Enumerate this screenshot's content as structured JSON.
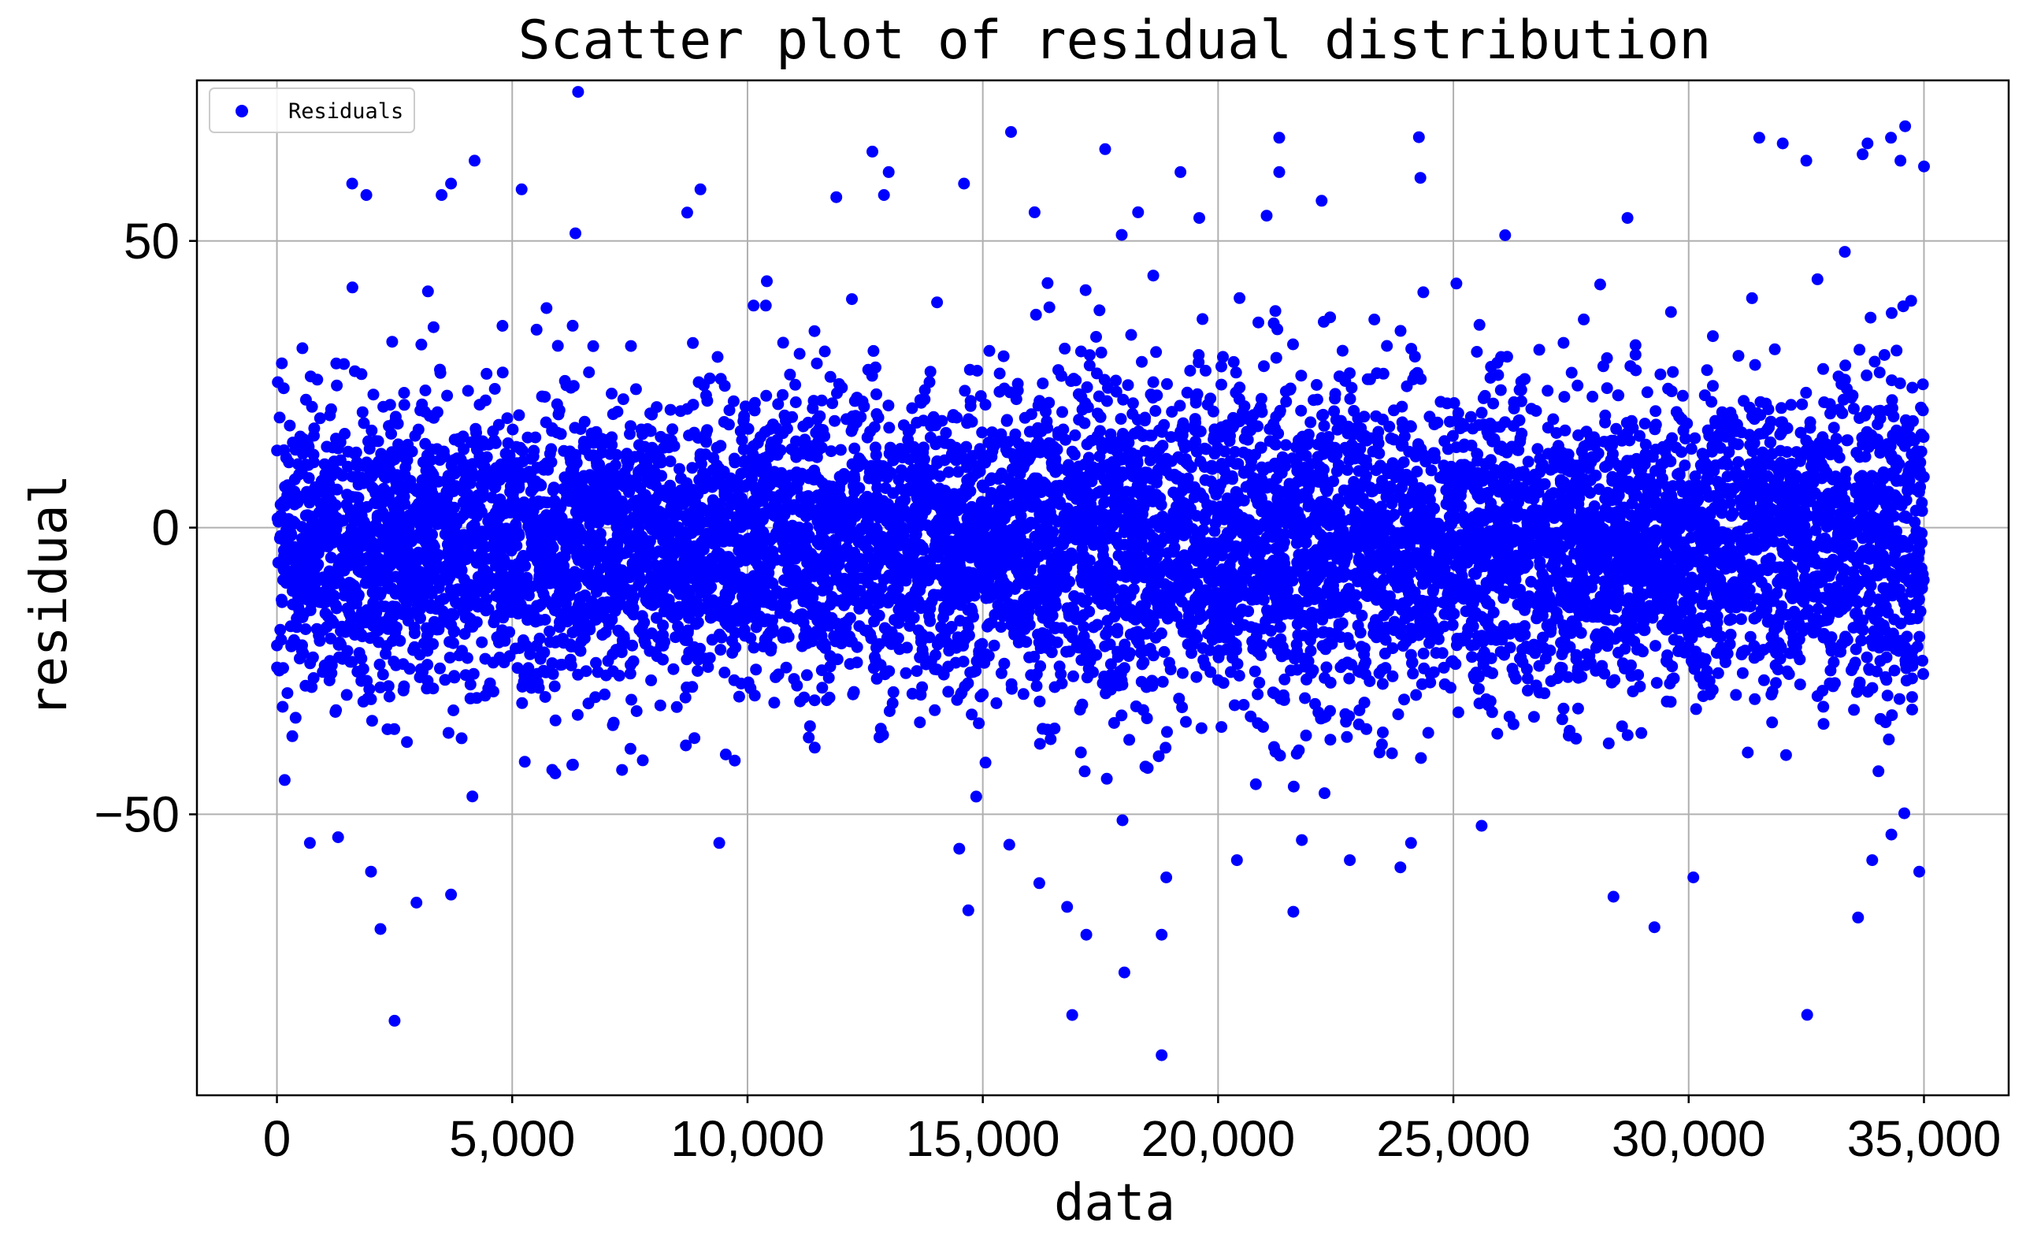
{
  "chart_data": {
    "type": "scatter",
    "title": "Scatter plot of residual distribution",
    "xlabel": "data",
    "ylabel": "residual",
    "xlim": [
      -1700,
      36800
    ],
    "ylim": [
      -99,
      78
    ],
    "x_ticks": [
      {
        "value": 0,
        "label": "0"
      },
      {
        "value": 5000,
        "label": "5,000"
      },
      {
        "value": 10000,
        "label": "10,000"
      },
      {
        "value": 15000,
        "label": "15,000"
      },
      {
        "value": 20000,
        "label": "20,000"
      },
      {
        "value": 25000,
        "label": "25,000"
      },
      {
        "value": 30000,
        "label": "30,000"
      },
      {
        "value": 35000,
        "label": "35,000"
      }
    ],
    "y_ticks": [
      {
        "value": 50,
        "label": "50"
      },
      {
        "value": 0,
        "label": "0"
      },
      {
        "value": -50,
        "label": "−50"
      }
    ],
    "grid": true,
    "legend": {
      "placement": "top-left",
      "entries": [
        "Residuals"
      ]
    },
    "marker_color": "#0000ff",
    "series": [
      {
        "name": "Residuals",
        "x_range": [
          0,
          35000
        ],
        "y_mean": 0,
        "y_spread": 12,
        "point_count": 35000,
        "outliers": [
          [
            4200,
            64
          ],
          [
            6400,
            76
          ],
          [
            15600,
            69
          ],
          [
            17600,
            66
          ],
          [
            21300,
            68
          ],
          [
            21300,
            62
          ],
          [
            26100,
            51
          ],
          [
            31500,
            68
          ],
          [
            34500,
            64
          ],
          [
            33800,
            67
          ],
          [
            34300,
            68
          ],
          [
            34600,
            70
          ],
          [
            1600,
            60
          ],
          [
            1900,
            58
          ],
          [
            3500,
            58
          ],
          [
            3700,
            60
          ],
          [
            5200,
            59
          ],
          [
            9000,
            59
          ],
          [
            13000,
            62
          ],
          [
            12900,
            58
          ],
          [
            14600,
            60
          ],
          [
            16100,
            55
          ],
          [
            18300,
            55
          ],
          [
            19200,
            62
          ],
          [
            19600,
            54
          ],
          [
            24300,
            61
          ],
          [
            22200,
            57
          ],
          [
            28700,
            54
          ],
          [
            32000,
            67
          ],
          [
            32500,
            64
          ],
          [
            35000,
            63
          ],
          [
            2500,
            -86
          ],
          [
            16900,
            -85
          ],
          [
            18800,
            -92
          ],
          [
            18800,
            -71
          ],
          [
            2200,
            -70
          ],
          [
            3700,
            -64
          ],
          [
            17200,
            -71
          ],
          [
            21600,
            -67
          ],
          [
            30100,
            -61
          ],
          [
            33600,
            -68
          ],
          [
            9400,
            -55
          ],
          [
            14500,
            -56
          ],
          [
            700,
            -55
          ],
          [
            1300,
            -54
          ],
          [
            2000,
            -60
          ],
          [
            16200,
            -62
          ],
          [
            18900,
            -61
          ],
          [
            20400,
            -58
          ],
          [
            22800,
            -58
          ],
          [
            33900,
            -58
          ],
          [
            34900,
            -60
          ],
          [
            24100,
            -55
          ],
          [
            25600,
            -52
          ]
        ]
      }
    ]
  }
}
